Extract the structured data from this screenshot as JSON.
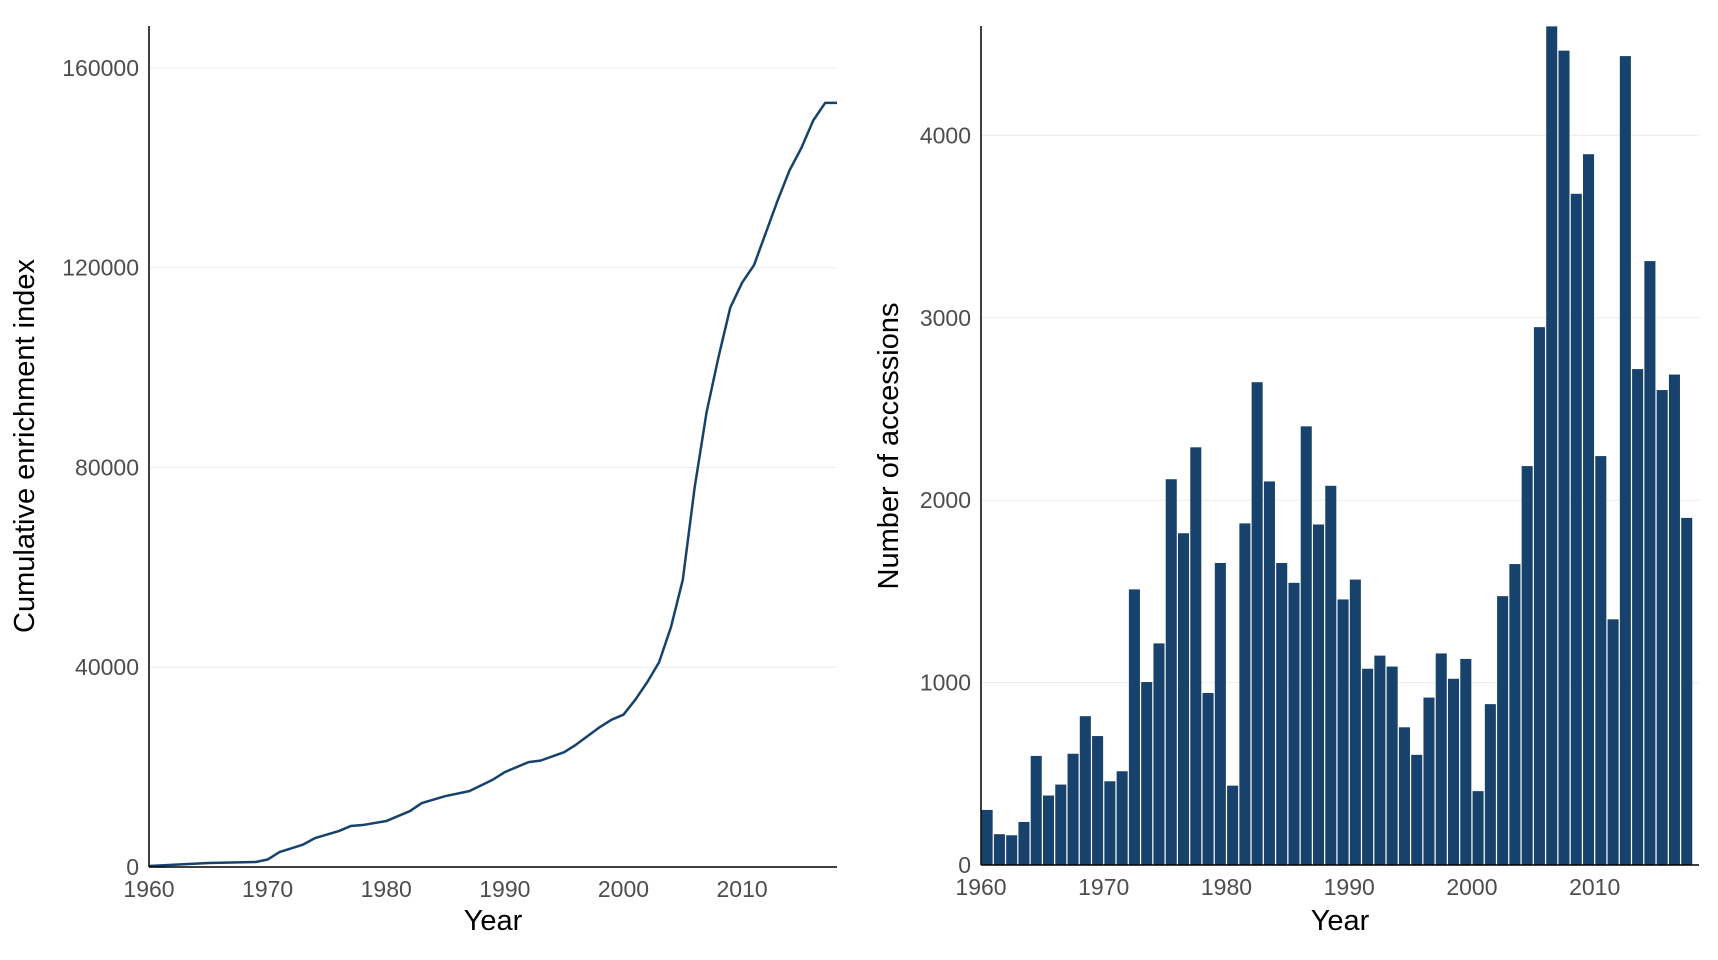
{
  "chart_data": [
    {
      "type": "line",
      "xlabel": "Year",
      "ylabel": "Cumulative enrichment index",
      "xlim": [
        1960,
        2018
      ],
      "ylim": [
        0,
        168400
      ],
      "xticks": [
        1960,
        1970,
        1980,
        1990,
        2000,
        2010
      ],
      "yticks": [
        0,
        40000,
        80000,
        120000,
        160000
      ],
      "grid": "horizontal major",
      "color": "#17426b",
      "x": [
        1960,
        1965,
        1969,
        1970,
        1971,
        1973,
        1974,
        1976,
        1977,
        1978,
        1980,
        1982,
        1983,
        1985,
        1987,
        1989,
        1990,
        1992,
        1993,
        1995,
        1996,
        1998,
        1999,
        2000,
        2001,
        2002,
        2003,
        2004,
        2005,
        2006,
        2007,
        2008,
        2009,
        2010,
        2011,
        2012,
        2013,
        2014,
        2015,
        2016,
        2017,
        2018
      ],
      "y": [
        200,
        800,
        1000,
        1500,
        3000,
        4500,
        5800,
        7200,
        8200,
        8400,
        9200,
        11200,
        12800,
        14200,
        15200,
        17500,
        19000,
        21000,
        21300,
        23000,
        24500,
        28000,
        29500,
        30500,
        33500,
        37000,
        41000,
        48000,
        57500,
        76000,
        91000,
        102000,
        112000,
        117000,
        120500,
        127000,
        133500,
        139500,
        144000,
        149500,
        153000,
        153000
      ]
    },
    {
      "type": "bar",
      "xlabel": "Year",
      "ylabel": "Number of accessions",
      "xlim": [
        1960,
        2018.5
      ],
      "ylim": [
        0,
        4600
      ],
      "xticks": [
        1960,
        1970,
        1980,
        1990,
        2000,
        2010
      ],
      "yticks": [
        0,
        1000,
        2000,
        3000,
        4000
      ],
      "grid": "horizontal major",
      "color": "#17426b",
      "categories": [
        1960,
        1961,
        1962,
        1963,
        1964,
        1965,
        1966,
        1967,
        1968,
        1969,
        1970,
        1971,
        1972,
        1973,
        1974,
        1975,
        1976,
        1977,
        1978,
        1979,
        1980,
        1981,
        1982,
        1983,
        1984,
        1985,
        1986,
        1987,
        1988,
        1989,
        1990,
        1991,
        1992,
        1993,
        1994,
        1995,
        1996,
        1997,
        1998,
        1999,
        2000,
        2001,
        2002,
        2003,
        2004,
        2005,
        2006,
        2007,
        2008,
        2009,
        2010,
        2011,
        2012,
        2013,
        2014,
        2015,
        2016,
        2017
      ],
      "values": [
        302,
        169,
        163,
        236,
        598,
        381,
        441,
        610,
        816,
        707,
        459,
        514,
        1511,
        1003,
        1215,
        2115,
        1819,
        2290,
        943,
        1656,
        435,
        1873,
        2647,
        2103,
        1656,
        1547,
        2405,
        1867,
        2079,
        1456,
        1565,
        1076,
        1148,
        1088,
        755,
        604,
        918,
        1160,
        1021,
        1130,
        405,
        882,
        1474,
        1650,
        2187,
        2949,
        4598,
        4465,
        3680,
        3897,
        2242,
        1347,
        4435,
        2719,
        3311,
        2604,
        2689,
        1903
      ]
    }
  ]
}
